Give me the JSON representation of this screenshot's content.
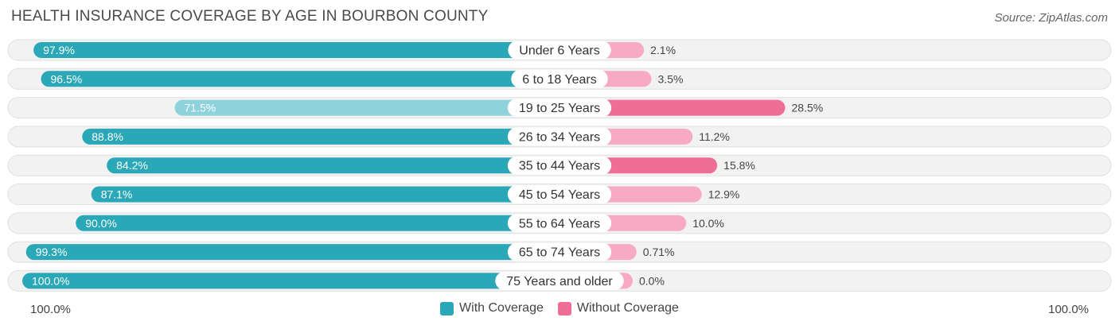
{
  "chart_data": {
    "type": "bar",
    "orientation": "horizontal-diverging",
    "title": "HEALTH INSURANCE COVERAGE BY AGE IN BOURBON COUNTY",
    "source": "Source: ZipAtlas.com",
    "categories": [
      "Under 6 Years",
      "6 to 18 Years",
      "19 to 25 Years",
      "26 to 34 Years",
      "35 to 44 Years",
      "45 to 54 Years",
      "55 to 64 Years",
      "65 to 74 Years",
      "75 Years and older"
    ],
    "series": [
      {
        "name": "With Coverage",
        "values": [
          97.9,
          96.5,
          71.5,
          88.8,
          84.2,
          87.1,
          90.0,
          99.3,
          100.0
        ],
        "labels": [
          "97.9%",
          "96.5%",
          "71.5%",
          "88.8%",
          "84.2%",
          "87.1%",
          "90.0%",
          "99.3%",
          "100.0%"
        ]
      },
      {
        "name": "Without Coverage",
        "values": [
          2.1,
          3.5,
          28.5,
          11.2,
          15.8,
          12.9,
          10.0,
          0.71,
          0.0
        ],
        "labels": [
          "2.1%",
          "3.5%",
          "28.5%",
          "11.2%",
          "15.8%",
          "12.9%",
          "10.0%",
          "0.71%",
          "0.0%"
        ]
      }
    ],
    "xlim": [
      0,
      100
    ],
    "axis_left_label": "100.0%",
    "axis_right_label": "100.0%",
    "legend_position": "bottom-center",
    "colors": {
      "with_strong": "#2aa8b8",
      "with_light": "#8ed2dc",
      "without_strong": "#f06d96",
      "without_light": "#f7aac3",
      "row_bg": "#f2f2f2",
      "row_border": "#e0e0e0"
    }
  }
}
